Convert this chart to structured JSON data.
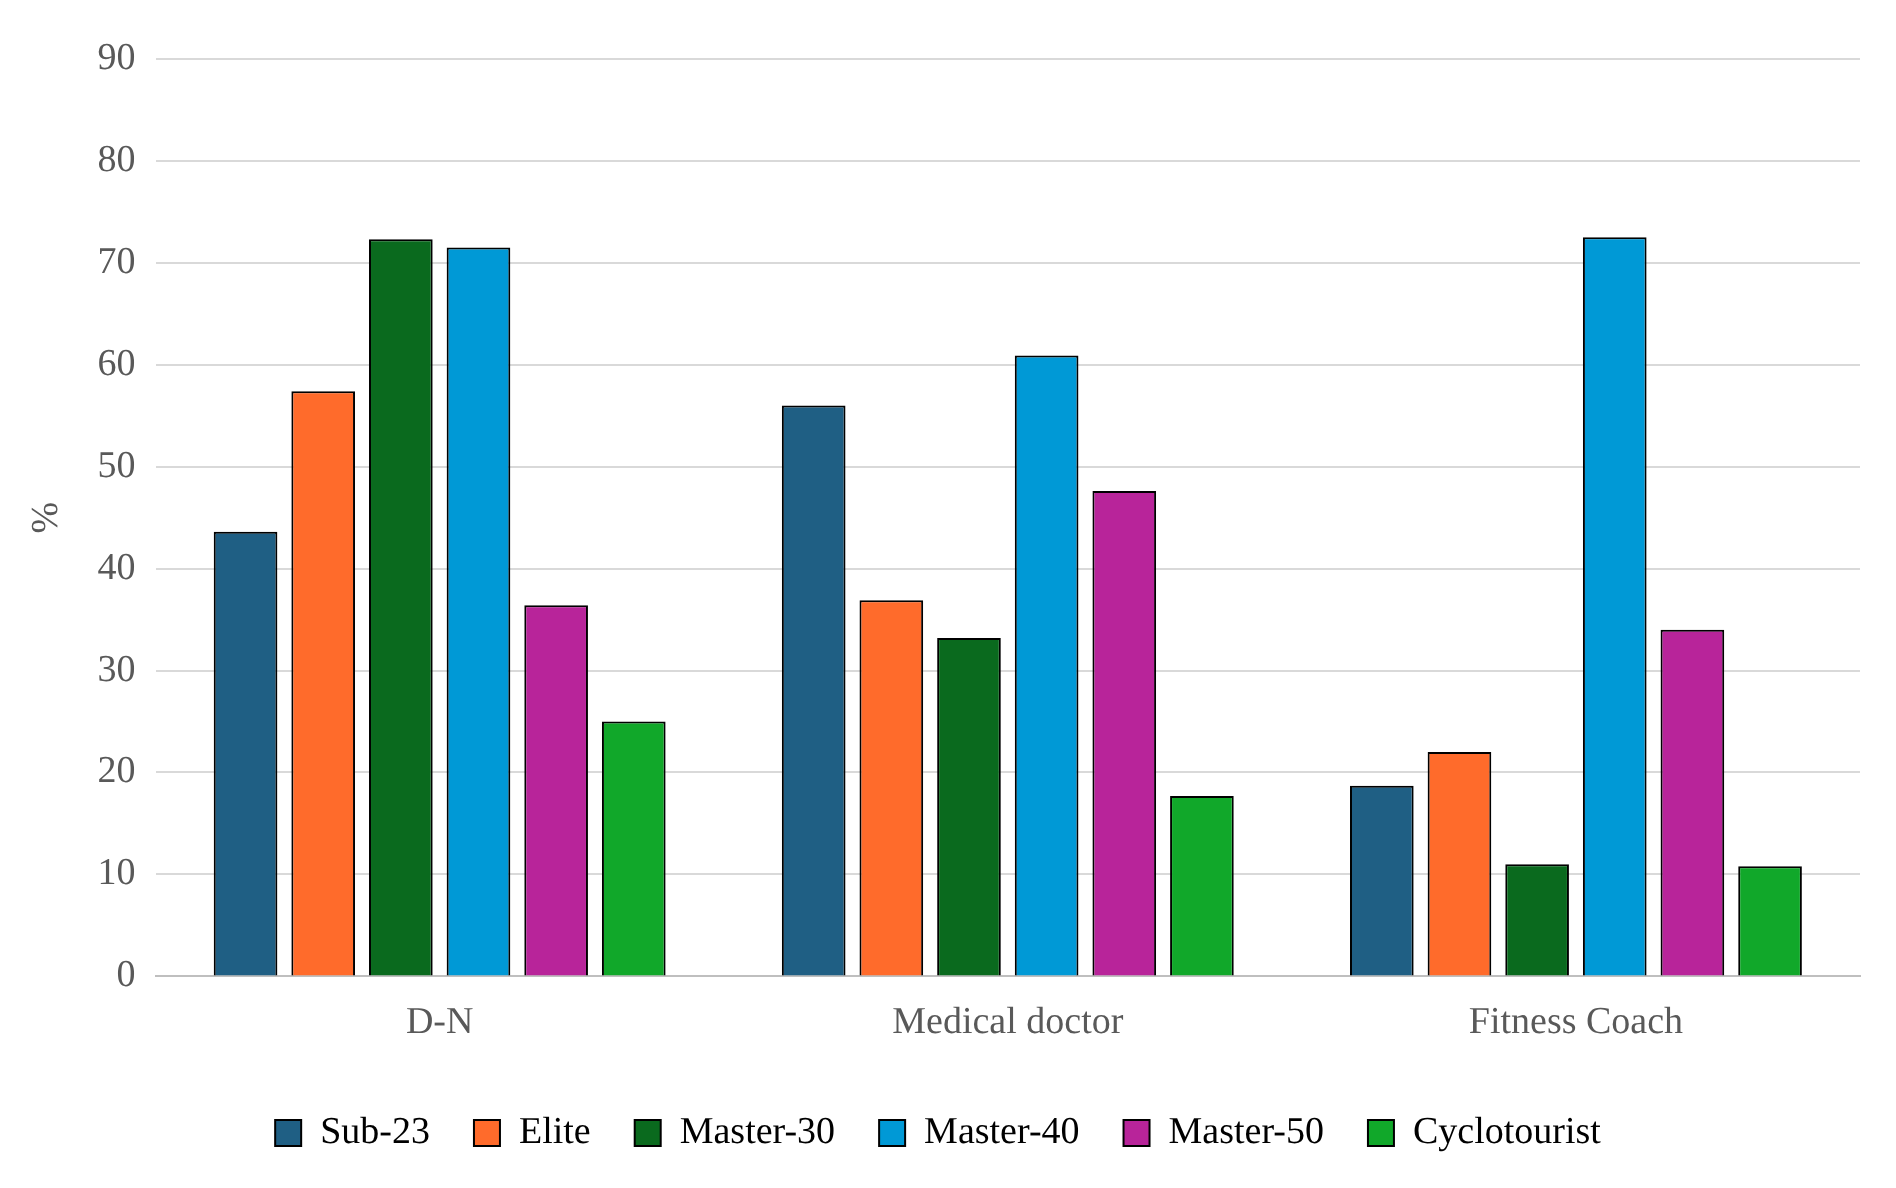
{
  "chart_data": {
    "type": "bar",
    "ylabel": "%",
    "categories": [
      "D-N",
      "Medical doctor",
      "Fitness Coach"
    ],
    "series": [
      {
        "name": "Sub-23",
        "color": "#1f5f84",
        "values": [
          43.6,
          56.0,
          18.7
        ]
      },
      {
        "name": "Elite",
        "color": "#ff6b2b",
        "values": [
          57.4,
          36.9,
          22.0
        ]
      },
      {
        "name": "Master-30",
        "color": "#0a6a1e",
        "values": [
          72.3,
          33.2,
          11.0
        ]
      },
      {
        "name": "Master-40",
        "color": "#0099d6",
        "values": [
          71.5,
          60.9,
          72.5
        ]
      },
      {
        "name": "Master-50",
        "color": "#b8249a",
        "values": [
          36.4,
          47.6,
          34.0
        ]
      },
      {
        "name": "Cyclotourist",
        "color": "#11a82a",
        "values": [
          25.0,
          17.7,
          10.8
        ]
      }
    ],
    "ylim": [
      0,
      90
    ],
    "yticks": [
      0,
      10,
      20,
      30,
      40,
      50,
      60,
      70,
      80,
      90
    ],
    "grid": "y",
    "legend": "bottom"
  }
}
